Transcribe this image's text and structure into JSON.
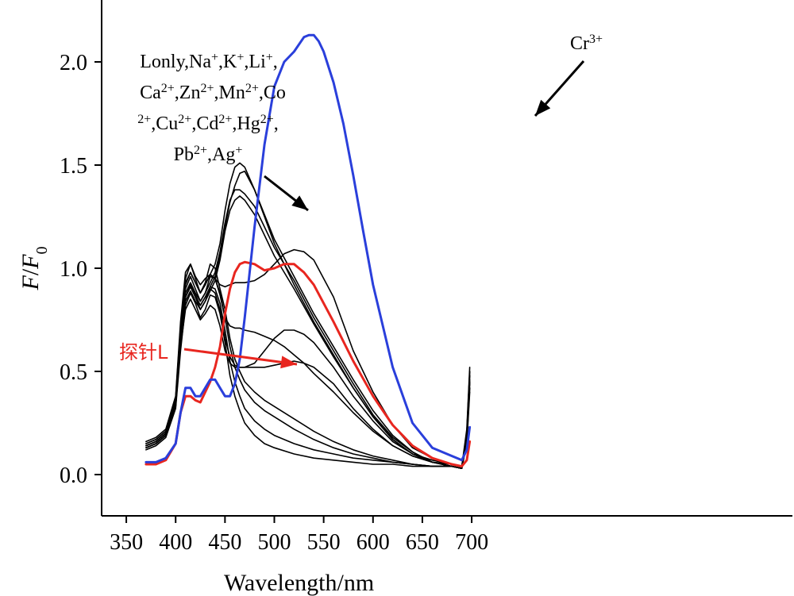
{
  "chart_data": {
    "type": "line",
    "xlabel": "Wavelength/nm",
    "ylabel": {
      "main": "F",
      "sep": "/",
      "sub_main": "F",
      "sub": "0"
    },
    "xlim": [
      325,
      1025
    ],
    "ylim": [
      -0.2,
      2.3
    ],
    "x_ticks": [
      350,
      400,
      450,
      500,
      550,
      600,
      650,
      700
    ],
    "x_tick_labels": [
      "350",
      "400",
      "450",
      "500",
      "550",
      "600",
      "650",
      "700"
    ],
    "y_ticks": [
      0.0,
      0.5,
      1.0,
      1.5,
      2.0
    ],
    "y_tick_labels": [
      "0.0",
      "0.5",
      "1.0",
      "1.5",
      "2.0"
    ],
    "grid": false,
    "legend": "none",
    "annotations": {
      "metal_list": [
        [
          {
            "t": "Lonly,Na"
          },
          {
            "t": "+",
            "sup": true
          },
          {
            "t": ",K"
          },
          {
            "t": "+",
            "sup": true
          },
          {
            "t": ",Li"
          },
          {
            "t": "+",
            "sup": true
          },
          {
            "t": ","
          }
        ],
        [
          {
            "t": "Ca"
          },
          {
            "t": "2+",
            "sup": true
          },
          {
            "t": ",Zn"
          },
          {
            "t": "2+",
            "sup": true
          },
          {
            "t": ",Mn"
          },
          {
            "t": "2+",
            "sup": true
          },
          {
            "t": ",Co"
          }
        ],
        [
          {
            "t": "2+",
            "sup": true
          },
          {
            "t": ",Cu"
          },
          {
            "t": "2+",
            "sup": true
          },
          {
            "t": ",Cd"
          },
          {
            "t": "2+",
            "sup": true
          },
          {
            "t": ",Hg"
          },
          {
            "t": "2+",
            "sup": true
          },
          {
            "t": ","
          }
        ],
        [
          {
            "t": "Pb"
          },
          {
            "t": "2+",
            "sup": true
          },
          {
            "t": ",Ag"
          },
          {
            "t": "+",
            "sup": true
          }
        ]
      ],
      "cr_label": [
        {
          "t": "Cr"
        },
        {
          "t": "3+",
          "sup": true
        }
      ],
      "probe_label": "探针L",
      "probe_color": "#e8261f"
    },
    "series": [
      {
        "color": "#2a3fdb",
        "width": 3,
        "x": [
          370,
          380,
          390,
          400,
          405,
          410,
          415,
          420,
          425,
          430,
          435,
          440,
          445,
          450,
          455,
          460,
          465,
          470,
          480,
          490,
          500,
          510,
          520,
          530,
          535,
          540,
          545,
          550,
          560,
          570,
          580,
          590,
          600,
          620,
          640,
          660,
          680,
          690,
          695,
          698
        ],
        "y": [
          0.06,
          0.06,
          0.08,
          0.15,
          0.3,
          0.42,
          0.42,
          0.38,
          0.38,
          0.42,
          0.46,
          0.46,
          0.42,
          0.38,
          0.38,
          0.44,
          0.56,
          0.76,
          1.2,
          1.6,
          1.88,
          2.0,
          2.05,
          2.12,
          2.13,
          2.13,
          2.1,
          2.05,
          1.9,
          1.7,
          1.45,
          1.18,
          0.92,
          0.52,
          0.25,
          0.13,
          0.09,
          0.07,
          0.12,
          0.23
        ]
      },
      {
        "color": "#e8261f",
        "width": 3,
        "x": [
          370,
          380,
          390,
          400,
          405,
          410,
          415,
          420,
          425,
          430,
          435,
          440,
          445,
          450,
          455,
          460,
          465,
          470,
          480,
          490,
          500,
          510,
          520,
          530,
          540,
          560,
          580,
          600,
          620,
          640,
          660,
          680,
          690,
          695,
          698
        ],
        "y": [
          0.05,
          0.05,
          0.07,
          0.15,
          0.3,
          0.38,
          0.38,
          0.36,
          0.35,
          0.4,
          0.45,
          0.52,
          0.62,
          0.78,
          0.9,
          0.98,
          1.02,
          1.03,
          1.02,
          0.99,
          1.0,
          1.02,
          1.02,
          0.98,
          0.92,
          0.74,
          0.55,
          0.38,
          0.24,
          0.14,
          0.08,
          0.05,
          0.04,
          0.07,
          0.16
        ]
      },
      {
        "color": "#000000",
        "width": 1.6,
        "x": [
          370,
          380,
          390,
          400,
          405,
          410,
          415,
          420,
          425,
          430,
          435,
          440,
          445,
          450,
          455,
          460,
          465,
          470,
          480,
          490,
          500,
          520,
          540,
          560,
          580,
          600,
          620,
          640,
          660,
          680,
          690,
          695,
          698
        ],
        "y": [
          0.13,
          0.15,
          0.19,
          0.35,
          0.7,
          0.95,
          1.02,
          0.95,
          0.88,
          0.93,
          1.02,
          1.0,
          0.9,
          0.8,
          0.66,
          0.56,
          0.5,
          0.45,
          0.4,
          0.36,
          0.33,
          0.27,
          0.21,
          0.16,
          0.12,
          0.09,
          0.07,
          0.05,
          0.04,
          0.04,
          0.03,
          0.2,
          0.5
        ]
      },
      {
        "color": "#000000",
        "width": 1.6,
        "x": [
          370,
          380,
          390,
          400,
          405,
          410,
          415,
          420,
          425,
          430,
          435,
          440,
          445,
          450,
          455,
          460,
          465,
          470,
          480,
          490,
          500,
          520,
          540,
          560,
          580,
          600,
          620,
          640,
          660,
          680,
          690,
          695,
          698
        ],
        "y": [
          0.14,
          0.16,
          0.2,
          0.34,
          0.66,
          0.9,
          0.96,
          0.9,
          0.84,
          0.88,
          0.96,
          0.95,
          0.88,
          0.76,
          0.62,
          0.52,
          0.46,
          0.41,
          0.35,
          0.31,
          0.28,
          0.22,
          0.17,
          0.13,
          0.1,
          0.08,
          0.06,
          0.05,
          0.04,
          0.04,
          0.03,
          0.18,
          0.45
        ]
      },
      {
        "color": "#000000",
        "width": 1.6,
        "x": [
          370,
          380,
          390,
          400,
          405,
          410,
          415,
          420,
          425,
          430,
          435,
          440,
          445,
          450,
          455,
          460,
          465,
          470,
          480,
          490,
          500,
          520,
          540,
          560,
          580,
          600,
          620,
          640,
          660,
          680,
          690,
          695,
          698
        ],
        "y": [
          0.13,
          0.15,
          0.19,
          0.33,
          0.63,
          0.86,
          0.92,
          0.86,
          0.8,
          0.84,
          0.91,
          0.9,
          0.83,
          0.7,
          0.55,
          0.45,
          0.38,
          0.32,
          0.26,
          0.22,
          0.19,
          0.15,
          0.12,
          0.1,
          0.08,
          0.07,
          0.06,
          0.05,
          0.04,
          0.04,
          0.03,
          0.18,
          0.42
        ]
      },
      {
        "color": "#000000",
        "width": 1.6,
        "x": [
          370,
          380,
          390,
          400,
          405,
          410,
          415,
          420,
          425,
          430,
          435,
          440,
          445,
          450,
          455,
          460,
          465,
          470,
          480,
          490,
          500,
          520,
          540,
          560,
          580,
          600,
          620,
          640,
          660,
          680,
          690,
          695,
          698
        ],
        "y": [
          0.12,
          0.14,
          0.18,
          0.32,
          0.6,
          0.82,
          0.88,
          0.83,
          0.76,
          0.8,
          0.87,
          0.86,
          0.78,
          0.64,
          0.48,
          0.38,
          0.31,
          0.25,
          0.19,
          0.15,
          0.13,
          0.1,
          0.08,
          0.07,
          0.06,
          0.05,
          0.05,
          0.04,
          0.04,
          0.04,
          0.03,
          0.15,
          0.4
        ]
      },
      {
        "color": "#000000",
        "width": 1.6,
        "x": [
          370,
          380,
          390,
          400,
          405,
          410,
          415,
          420,
          425,
          430,
          435,
          440,
          445,
          450,
          455,
          460,
          465,
          470,
          480,
          490,
          500,
          510,
          520,
          530,
          540,
          560,
          580,
          600,
          620,
          640,
          660,
          680,
          690,
          695,
          698
        ],
        "y": [
          0.15,
          0.17,
          0.21,
          0.36,
          0.7,
          0.92,
          0.98,
          0.93,
          0.88,
          0.92,
          0.97,
          0.95,
          0.87,
          0.76,
          0.72,
          0.71,
          0.71,
          0.7,
          0.69,
          0.67,
          0.65,
          0.62,
          0.58,
          0.54,
          0.49,
          0.4,
          0.3,
          0.21,
          0.14,
          0.09,
          0.06,
          0.05,
          0.04,
          0.2,
          0.48
        ]
      },
      {
        "color": "#000000",
        "width": 1.6,
        "x": [
          370,
          380,
          390,
          400,
          405,
          410,
          415,
          420,
          425,
          430,
          435,
          440,
          445,
          450,
          455,
          460,
          465,
          470,
          480,
          490,
          500,
          510,
          520,
          530,
          540,
          560,
          580,
          600,
          620,
          640,
          660,
          680,
          690,
          695,
          698
        ],
        "y": [
          0.14,
          0.16,
          0.2,
          0.34,
          0.66,
          0.86,
          0.92,
          0.87,
          0.82,
          0.86,
          0.9,
          0.88,
          0.8,
          0.66,
          0.57,
          0.53,
          0.52,
          0.52,
          0.54,
          0.6,
          0.66,
          0.7,
          0.7,
          0.68,
          0.64,
          0.52,
          0.38,
          0.26,
          0.16,
          0.1,
          0.07,
          0.05,
          0.04,
          0.18,
          0.45
        ]
      },
      {
        "color": "#000000",
        "width": 1.6,
        "x": [
          370,
          380,
          390,
          400,
          405,
          410,
          415,
          420,
          425,
          430,
          435,
          440,
          445,
          450,
          455,
          460,
          465,
          470,
          480,
          490,
          500,
          510,
          520,
          530,
          540,
          560,
          580,
          600,
          620,
          640,
          660,
          680,
          690,
          695,
          698
        ],
        "y": [
          0.13,
          0.15,
          0.19,
          0.33,
          0.62,
          0.8,
          0.85,
          0.8,
          0.75,
          0.78,
          0.82,
          0.8,
          0.72,
          0.6,
          0.54,
          0.52,
          0.52,
          0.52,
          0.52,
          0.52,
          0.53,
          0.54,
          0.55,
          0.54,
          0.52,
          0.44,
          0.32,
          0.22,
          0.14,
          0.09,
          0.06,
          0.05,
          0.04,
          0.16,
          0.42
        ]
      },
      {
        "color": "#000000",
        "width": 1.6,
        "x": [
          370,
          380,
          390,
          400,
          405,
          410,
          415,
          420,
          425,
          430,
          435,
          440,
          445,
          450,
          455,
          460,
          465,
          470,
          480,
          490,
          500,
          510,
          520,
          530,
          540,
          560,
          580,
          600,
          620,
          640,
          660,
          680,
          690,
          695,
          698
        ],
        "y": [
          0.16,
          0.18,
          0.22,
          0.38,
          0.74,
          0.98,
          1.02,
          0.96,
          0.92,
          0.95,
          0.97,
          0.95,
          0.92,
          0.91,
          0.92,
          0.93,
          0.93,
          0.93,
          0.94,
          0.97,
          1.02,
          1.07,
          1.09,
          1.08,
          1.04,
          0.86,
          0.6,
          0.4,
          0.24,
          0.13,
          0.08,
          0.05,
          0.04,
          0.22,
          0.52
        ]
      },
      {
        "color": "#000000",
        "width": 1.6,
        "x": [
          370,
          380,
          390,
          400,
          405,
          410,
          415,
          420,
          425,
          430,
          435,
          440,
          445,
          450,
          455,
          460,
          465,
          470,
          480,
          490,
          500,
          520,
          540,
          560,
          580,
          600,
          620,
          640,
          660,
          680,
          690,
          695,
          698
        ],
        "y": [
          0.15,
          0.17,
          0.21,
          0.37,
          0.72,
          0.93,
          0.98,
          0.93,
          0.88,
          0.92,
          0.97,
          1.02,
          1.12,
          1.28,
          1.41,
          1.49,
          1.51,
          1.49,
          1.38,
          1.25,
          1.12,
          0.92,
          0.74,
          0.58,
          0.42,
          0.28,
          0.17,
          0.1,
          0.06,
          0.04,
          0.03,
          0.2,
          0.5
        ]
      },
      {
        "color": "#000000",
        "width": 1.6,
        "x": [
          370,
          380,
          390,
          400,
          405,
          410,
          415,
          420,
          425,
          430,
          435,
          440,
          445,
          450,
          455,
          460,
          465,
          470,
          480,
          490,
          500,
          520,
          540,
          560,
          580,
          600,
          620,
          640,
          660,
          680,
          690,
          695,
          698
        ],
        "y": [
          0.14,
          0.16,
          0.2,
          0.35,
          0.68,
          0.88,
          0.93,
          0.88,
          0.84,
          0.88,
          0.93,
          0.98,
          1.08,
          1.22,
          1.33,
          1.38,
          1.38,
          1.36,
          1.3,
          1.2,
          1.1,
          0.94,
          0.76,
          0.6,
          0.44,
          0.29,
          0.18,
          0.11,
          0.06,
          0.04,
          0.03,
          0.18,
          0.46
        ]
      },
      {
        "color": "#000000",
        "width": 1.6,
        "x": [
          370,
          380,
          390,
          400,
          405,
          410,
          415,
          420,
          425,
          430,
          435,
          440,
          445,
          450,
          455,
          460,
          465,
          470,
          480,
          490,
          500,
          520,
          540,
          560,
          580,
          600,
          620,
          640,
          660,
          680,
          690,
          695,
          698
        ],
        "y": [
          0.13,
          0.15,
          0.19,
          0.33,
          0.64,
          0.84,
          0.89,
          0.84,
          0.8,
          0.84,
          0.89,
          0.94,
          1.04,
          1.18,
          1.28,
          1.33,
          1.35,
          1.33,
          1.26,
          1.16,
          1.06,
          0.9,
          0.73,
          0.57,
          0.42,
          0.28,
          0.17,
          0.1,
          0.06,
          0.04,
          0.03,
          0.17,
          0.44
        ]
      },
      {
        "color": "#000000",
        "width": 1.6,
        "x": [
          370,
          380,
          390,
          400,
          405,
          410,
          415,
          420,
          425,
          430,
          435,
          440,
          445,
          450,
          455,
          460,
          465,
          470,
          480,
          490,
          500,
          520,
          540,
          560,
          580,
          600,
          620,
          640,
          660,
          680,
          690,
          695,
          698
        ],
        "y": [
          0.14,
          0.16,
          0.2,
          0.34,
          0.66,
          0.86,
          0.91,
          0.86,
          0.82,
          0.86,
          0.91,
          0.96,
          1.06,
          1.2,
          1.32,
          1.4,
          1.46,
          1.47,
          1.38,
          1.26,
          1.14,
          0.96,
          0.78,
          0.62,
          0.46,
          0.31,
          0.19,
          0.11,
          0.06,
          0.04,
          0.03,
          0.18,
          0.48
        ]
      }
    ]
  }
}
